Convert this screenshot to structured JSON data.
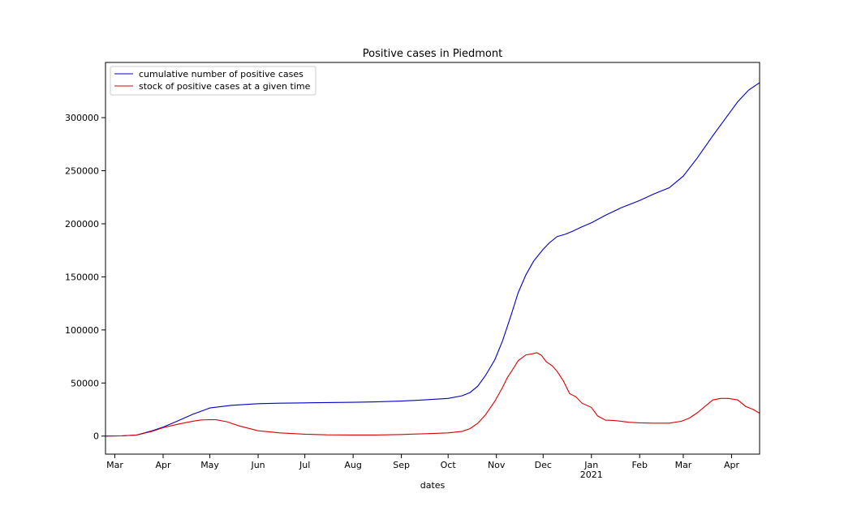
{
  "chart_data": {
    "type": "line",
    "title": "Positive cases in Piedmont",
    "xlabel": "dates",
    "ylabel": "",
    "xlim": [
      "2020-02-24",
      "2021-04-19"
    ],
    "ylim": [
      -17000,
      352000
    ],
    "legend_placement": "top-left",
    "grid": false,
    "x_ticks": [
      {
        "date": "2020-03-01",
        "label": "Mar",
        "sub": ""
      },
      {
        "date": "2020-04-01",
        "label": "Apr",
        "sub": ""
      },
      {
        "date": "2020-05-01",
        "label": "May",
        "sub": ""
      },
      {
        "date": "2020-06-01",
        "label": "Jun",
        "sub": ""
      },
      {
        "date": "2020-07-01",
        "label": "Jul",
        "sub": ""
      },
      {
        "date": "2020-08-01",
        "label": "Aug",
        "sub": ""
      },
      {
        "date": "2020-09-01",
        "label": "Sep",
        "sub": ""
      },
      {
        "date": "2020-10-01",
        "label": "Oct",
        "sub": ""
      },
      {
        "date": "2020-11-01",
        "label": "Nov",
        "sub": ""
      },
      {
        "date": "2020-12-01",
        "label": "Dec",
        "sub": ""
      },
      {
        "date": "2021-01-01",
        "label": "Jan",
        "sub": "2021"
      },
      {
        "date": "2021-02-01",
        "label": "Feb",
        "sub": ""
      },
      {
        "date": "2021-03-01",
        "label": "Mar",
        "sub": ""
      },
      {
        "date": "2021-04-01",
        "label": "Apr",
        "sub": ""
      }
    ],
    "y_ticks": [
      0,
      50000,
      100000,
      150000,
      200000,
      250000,
      300000
    ],
    "series": [
      {
        "name": "cumulative number of positive cases",
        "color": "#0000cc",
        "points": [
          [
            "2020-02-24",
            0
          ],
          [
            "2020-03-05",
            200
          ],
          [
            "2020-03-15",
            1000
          ],
          [
            "2020-03-25",
            5000
          ],
          [
            "2020-04-01",
            8500
          ],
          [
            "2020-04-10",
            14000
          ],
          [
            "2020-04-20",
            20500
          ],
          [
            "2020-05-01",
            26500
          ],
          [
            "2020-05-15",
            29000
          ],
          [
            "2020-06-01",
            30500
          ],
          [
            "2020-06-15",
            31000
          ],
          [
            "2020-07-01",
            31300
          ],
          [
            "2020-08-01",
            31800
          ],
          [
            "2020-08-15",
            32200
          ],
          [
            "2020-09-01",
            33000
          ],
          [
            "2020-09-15",
            34000
          ],
          [
            "2020-10-01",
            35500
          ],
          [
            "2020-10-10",
            38000
          ],
          [
            "2020-10-15",
            41000
          ],
          [
            "2020-10-20",
            47000
          ],
          [
            "2020-10-25",
            57000
          ],
          [
            "2020-10-31",
            72000
          ],
          [
            "2020-11-05",
            90000
          ],
          [
            "2020-11-10",
            112000
          ],
          [
            "2020-11-15",
            135000
          ],
          [
            "2020-11-20",
            152000
          ],
          [
            "2020-11-25",
            165000
          ],
          [
            "2020-12-01",
            176000
          ],
          [
            "2020-12-05",
            182000
          ],
          [
            "2020-12-10",
            188000
          ],
          [
            "2020-12-15",
            190000
          ],
          [
            "2020-12-20",
            193000
          ],
          [
            "2020-12-25",
            196500
          ],
          [
            "2021-01-01",
            201000
          ],
          [
            "2021-01-10",
            208000
          ],
          [
            "2021-01-20",
            215000
          ],
          [
            "2021-02-01",
            222000
          ],
          [
            "2021-02-10",
            228000
          ],
          [
            "2021-02-20",
            234000
          ],
          [
            "2021-03-01",
            245000
          ],
          [
            "2021-03-10",
            262000
          ],
          [
            "2021-03-20",
            283000
          ],
          [
            "2021-03-30",
            303000
          ],
          [
            "2021-04-05",
            315000
          ],
          [
            "2021-04-12",
            326000
          ],
          [
            "2021-04-19",
            333000
          ]
        ]
      },
      {
        "name": "stock of positive cases at a given time",
        "color": "#dd0000",
        "points": [
          [
            "2020-02-24",
            0
          ],
          [
            "2020-03-05",
            200
          ],
          [
            "2020-03-15",
            1000
          ],
          [
            "2020-03-25",
            4500
          ],
          [
            "2020-04-01",
            8000
          ],
          [
            "2020-04-10",
            11000
          ],
          [
            "2020-04-20",
            14000
          ],
          [
            "2020-04-25",
            15200
          ],
          [
            "2020-05-01",
            15500
          ],
          [
            "2020-05-05",
            15400
          ],
          [
            "2020-05-12",
            13500
          ],
          [
            "2020-05-20",
            9500
          ],
          [
            "2020-06-01",
            5000
          ],
          [
            "2020-06-15",
            3000
          ],
          [
            "2020-07-01",
            1800
          ],
          [
            "2020-07-15",
            1200
          ],
          [
            "2020-08-01",
            1000
          ],
          [
            "2020-08-15",
            1000
          ],
          [
            "2020-09-01",
            1500
          ],
          [
            "2020-09-15",
            2200
          ],
          [
            "2020-10-01",
            3000
          ],
          [
            "2020-10-10",
            4500
          ],
          [
            "2020-10-15",
            7000
          ],
          [
            "2020-10-20",
            12000
          ],
          [
            "2020-10-25",
            20000
          ],
          [
            "2020-10-31",
            33000
          ],
          [
            "2020-11-05",
            46000
          ],
          [
            "2020-11-08",
            55000
          ],
          [
            "2020-11-12",
            64000
          ],
          [
            "2020-11-15",
            71000
          ],
          [
            "2020-11-20",
            76500
          ],
          [
            "2020-11-24",
            77500
          ],
          [
            "2020-11-27",
            78500
          ],
          [
            "2020-11-30",
            76000
          ],
          [
            "2020-12-03",
            70000
          ],
          [
            "2020-12-07",
            66000
          ],
          [
            "2020-12-10",
            61000
          ],
          [
            "2020-12-14",
            52000
          ],
          [
            "2020-12-18",
            40000
          ],
          [
            "2020-12-22",
            37000
          ],
          [
            "2020-12-26",
            31000
          ],
          [
            "2021-01-01",
            27000
          ],
          [
            "2021-01-05",
            19000
          ],
          [
            "2021-01-10",
            15000
          ],
          [
            "2021-01-15",
            14800
          ],
          [
            "2021-01-20",
            14000
          ],
          [
            "2021-01-25",
            13000
          ],
          [
            "2021-02-01",
            12500
          ],
          [
            "2021-02-10",
            12200
          ],
          [
            "2021-02-20",
            12200
          ],
          [
            "2021-02-28",
            14000
          ],
          [
            "2021-03-05",
            17000
          ],
          [
            "2021-03-10",
            22000
          ],
          [
            "2021-03-15",
            28000
          ],
          [
            "2021-03-20",
            34000
          ],
          [
            "2021-03-25",
            35500
          ],
          [
            "2021-03-30",
            35500
          ],
          [
            "2021-04-05",
            34000
          ],
          [
            "2021-04-10",
            28000
          ],
          [
            "2021-04-15",
            25000
          ],
          [
            "2021-04-19",
            21500
          ]
        ]
      }
    ]
  }
}
